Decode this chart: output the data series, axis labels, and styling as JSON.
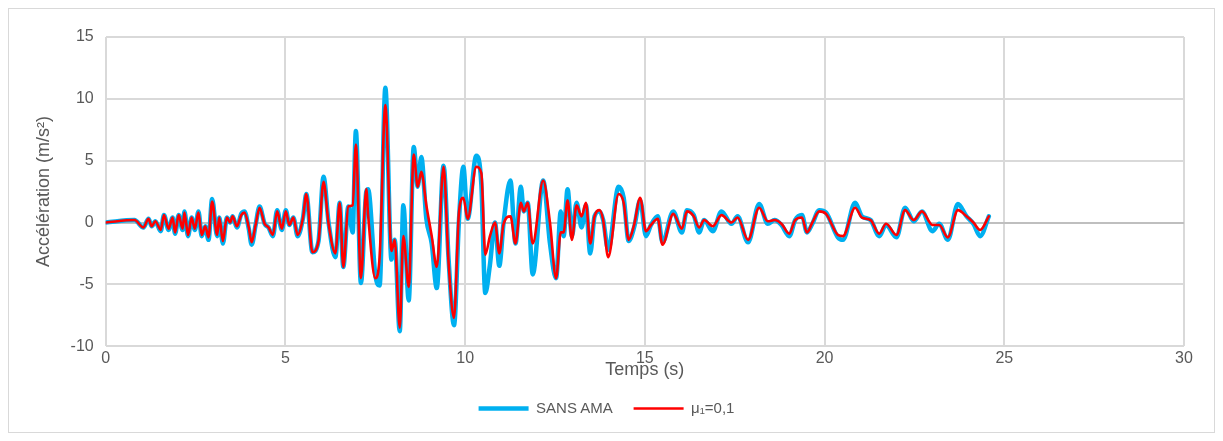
{
  "chart_data": {
    "type": "line",
    "xlabel": "Temps (s)",
    "ylabel": "Accélération (m/s²)",
    "xlim": [
      0,
      30
    ],
    "xticks": [
      0,
      5,
      10,
      15,
      20,
      25,
      30
    ],
    "ylim": [
      -10,
      15
    ],
    "yticks": [
      -10,
      -5,
      0,
      5,
      10,
      15
    ],
    "grid": true,
    "legend": "bottom",
    "marker": "none",
    "line_style": "solid",
    "x": [
      0,
      0.8,
      1.05,
      1.19,
      1.28,
      1.38,
      1.53,
      1.62,
      1.75,
      1.86,
      1.93,
      2.03,
      2.14,
      2.19,
      2.29,
      2.39,
      2.48,
      2.58,
      2.67,
      2.77,
      2.86,
      2.96,
      3.1,
      3.16,
      3.26,
      3.37,
      3.46,
      3.53,
      3.65,
      3.77,
      3.86,
      3.98,
      4.06,
      4.17,
      4.28,
      4.42,
      4.53,
      4.65,
      4.77,
      4.9,
      5.01,
      5.11,
      5.22,
      5.34,
      5.49,
      5.58,
      5.75,
      5.92,
      6.06,
      6.2,
      6.39,
      6.51,
      6.61,
      6.75,
      6.87,
      6.96,
      7.1,
      7.25,
      7.3,
      7.5,
      7.62,
      7.78,
      7.95,
      8.04,
      8.18,
      8.28,
      8.43,
      8.57,
      8.68,
      8.78,
      8.92,
      9.07,
      9.21,
      9.4,
      9.54,
      9.69,
      9.83,
      9.95,
      10.07,
      10.31,
      10.45,
      10.56,
      10.69,
      10.83,
      10.95,
      11.07,
      11.26,
      11.4,
      11.55,
      11.63,
      11.74,
      11.88,
      12.17,
      12.36,
      12.53,
      12.66,
      12.74,
      12.85,
      12.97,
      13.1,
      13.24,
      13.36,
      13.48,
      13.6,
      13.74,
      13.84,
      13.98,
      14.27,
      14.41,
      14.55,
      14.7,
      14.87,
      15.03,
      15.17,
      15.36,
      15.49,
      15.79,
      16.03,
      16.17,
      16.36,
      16.51,
      16.65,
      16.89,
      17.13,
      17.41,
      17.58,
      17.87,
      18.18,
      18.42,
      18.61,
      18.8,
      19.02,
      19.18,
      19.37,
      19.51,
      19.66,
      19.85,
      20.04,
      20.37,
      20.51,
      20.85,
      21.04,
      21.28,
      21.52,
      21.71,
      22.0,
      22.24,
      22.48,
      22.71,
      23.0,
      23.19,
      23.43,
      23.71,
      23.95,
      24.14,
      24.33,
      24.57
    ],
    "series": [
      {
        "name": "SANS AMA",
        "color": "#00b0f0",
        "values": [
          0,
          0.2,
          -0.4,
          0.3,
          -0.3,
          0.1,
          -0.7,
          0.6,
          -0.6,
          0.4,
          -0.9,
          0.6,
          -0.6,
          0.9,
          -1.1,
          0.4,
          -0.6,
          0.9,
          -1.1,
          -0.3,
          -1.4,
          1.9,
          -1.1,
          0.4,
          -1.7,
          0.4,
          0,
          0.5,
          -0.4,
          0.7,
          0.9,
          -0.5,
          -1.8,
          -0.2,
          1.3,
          -0.1,
          -0.4,
          -1.1,
          1.0,
          -0.6,
          1.0,
          -0.2,
          0.4,
          -1.1,
          0.4,
          2.3,
          -2.4,
          -1.5,
          3.7,
          0,
          -2.8,
          1.6,
          -3.6,
          1.3,
          -0.8,
          7.4,
          -4.9,
          2.5,
          2.7,
          -4.2,
          -5.1,
          10.9,
          -3.0,
          -1.4,
          -8.8,
          1.4,
          -6.3,
          6.1,
          2.9,
          5.3,
          0.3,
          -1.7,
          -5.3,
          4.6,
          -3.0,
          -8.3,
          0.3,
          4.5,
          0.3,
          5.4,
          3.1,
          -5.7,
          -3.4,
          0,
          -3.5,
          0,
          3.4,
          -1.7,
          2.9,
          0.9,
          1.6,
          -4.2,
          3.4,
          -1.7,
          -4.5,
          0.9,
          -1.1,
          2.7,
          -1.1,
          1.6,
          -0.4,
          1.4,
          -2.5,
          0.5,
          0.9,
          0.2,
          -2.2,
          2.9,
          2.0,
          -1.5,
          -0.4,
          1.8,
          -1.1,
          -0.2,
          0.5,
          -1.6,
          0.9,
          -0.8,
          1.0,
          0.6,
          -0.8,
          0.2,
          -0.7,
          0.9,
          -0.1,
          0.5,
          -1.6,
          1.5,
          -0.1,
          0.2,
          -0.2,
          -1.1,
          0.2,
          0.6,
          -0.8,
          -0.1,
          1.0,
          0.8,
          -1.2,
          -1.4,
          1.6,
          0.5,
          0.2,
          -1.1,
          -0.2,
          -1.2,
          1.2,
          0.1,
          0.9,
          -0.7,
          -0.1,
          -1.4,
          1.5,
          0.5,
          -0.1,
          -1.1,
          0.5
        ]
      },
      {
        "name": "μ₁=0,1",
        "color": "#ff0000",
        "values": [
          0,
          0.2,
          -0.4,
          0.3,
          -0.3,
          0.1,
          -0.6,
          0.6,
          -0.5,
          0.4,
          -0.8,
          0.6,
          -0.5,
          0.8,
          -1.0,
          0.4,
          -0.5,
          0.8,
          -1.0,
          -0.3,
          -1.2,
          1.7,
          -1.0,
          0.4,
          -1.5,
          0.4,
          0,
          0.5,
          -0.3,
          0.6,
          0.8,
          -0.4,
          -1.6,
          -0.2,
          1.2,
          -0.1,
          -0.4,
          -1.0,
          0.9,
          -0.5,
          0.9,
          -0.2,
          0.4,
          -1.0,
          0.4,
          2.3,
          -2.4,
          -1.5,
          3.3,
          -0.1,
          -2.5,
          1.6,
          -3.6,
          1.3,
          1.4,
          6.3,
          -4.5,
          2.7,
          0.6,
          -4.5,
          -2.8,
          9.5,
          -2.3,
          -1.4,
          -8.5,
          -1.1,
          -5.2,
          5.5,
          2.9,
          4.1,
          1.4,
          -1.1,
          -3.6,
          4.5,
          -3.3,
          -7.7,
          0.9,
          2.0,
          0.3,
          4.5,
          4.0,
          -2.6,
          -1.1,
          0,
          -2.5,
          -0.1,
          0.5,
          -1.7,
          1.6,
          0.9,
          1.6,
          -1.7,
          3.4,
          0,
          -4.5,
          -0.8,
          -0.8,
          1.8,
          -1.4,
          1.4,
          0.5,
          1.6,
          -1.7,
          0.5,
          1.0,
          0.2,
          -2.8,
          2.3,
          1.6,
          -1.4,
          -0.2,
          2.0,
          -0.7,
          -0.2,
          0.3,
          -1.8,
          0.7,
          -0.5,
          0.9,
          0.5,
          -0.4,
          0.2,
          -0.3,
          0.6,
          0,
          0.4,
          -1.4,
          1.2,
          0.1,
          0.2,
          -0.1,
          -0.9,
          0.2,
          0.4,
          -0.8,
          0,
          0.9,
          0.7,
          -1.0,
          -1.1,
          1.2,
          0.4,
          0.2,
          -0.9,
          -0.1,
          -1.0,
          1.0,
          0.2,
          0.9,
          -0.2,
          -0.2,
          -1.2,
          1.0,
          0.5,
          0,
          -0.6,
          0.5
        ]
      }
    ]
  }
}
